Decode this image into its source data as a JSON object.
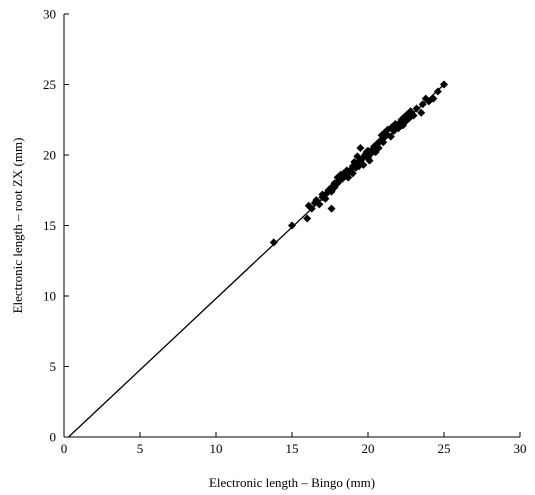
{
  "chart_data": {
    "type": "scatter",
    "xlabel": "Electronic length – Bingo  (mm)",
    "ylabel": "Electronic length – root ZX (mm)",
    "xlim": [
      0,
      30
    ],
    "ylim": [
      0,
      30
    ],
    "xticks": [
      "0",
      "5",
      "10",
      "15",
      "20",
      "25",
      "30"
    ],
    "yticks": [
      "0",
      "5",
      "10",
      "15",
      "20",
      "25",
      "30"
    ],
    "grid": false,
    "marker": "diamond",
    "marker_color": "#000000",
    "fit_line": {
      "x": [
        0.3,
        25.0
      ],
      "y": [
        0.0,
        25.0
      ]
    },
    "series": [
      {
        "x": [
          13.8,
          15.0,
          16.0,
          16.1,
          16.3,
          16.5,
          16.6,
          16.8,
          17.0,
          17.0,
          17.2,
          17.3,
          17.4,
          17.5,
          17.6,
          17.7,
          17.8,
          17.8,
          17.6,
          18.0,
          18.0,
          18.1,
          18.2,
          18.3,
          18.4,
          18.5,
          18.6,
          18.7,
          18.8,
          18.9,
          19.0,
          19.0,
          19.1,
          19.2,
          19.3,
          19.3,
          19.4,
          19.5,
          19.5,
          19.6,
          19.7,
          19.8,
          19.9,
          20.0,
          20.0,
          20.1,
          20.2,
          20.3,
          20.4,
          20.5,
          20.6,
          20.7,
          20.8,
          20.9,
          21.0,
          21.0,
          21.1,
          21.2,
          21.3,
          21.5,
          21.6,
          21.7,
          21.8,
          22.0,
          22.1,
          22.2,
          22.3,
          22.4,
          22.5,
          22.6,
          22.7,
          22.8,
          23.0,
          23.2,
          23.5,
          23.6,
          23.8,
          24.0,
          24.3,
          24.6,
          25.0
        ],
        "y": [
          13.8,
          15.0,
          15.5,
          16.4,
          16.2,
          16.6,
          16.8,
          16.5,
          17.0,
          17.2,
          16.9,
          17.3,
          17.5,
          17.6,
          17.4,
          17.8,
          17.7,
          18.0,
          16.2,
          18.0,
          18.4,
          18.2,
          18.6,
          18.3,
          18.7,
          18.5,
          18.9,
          18.4,
          18.8,
          19.0,
          19.2,
          18.7,
          19.5,
          19.1,
          19.4,
          19.9,
          19.2,
          19.6,
          20.5,
          19.7,
          19.3,
          20.0,
          20.2,
          19.8,
          20.3,
          19.6,
          20.1,
          20.4,
          20.6,
          20.2,
          20.8,
          20.5,
          21.0,
          21.4,
          20.9,
          21.2,
          21.6,
          21.5,
          21.8,
          21.3,
          22.0,
          21.7,
          22.2,
          21.9,
          22.3,
          22.5,
          22.1,
          22.7,
          22.4,
          22.9,
          22.6,
          23.1,
          22.8,
          23.3,
          23.0,
          23.6,
          24.0,
          23.8,
          24.0,
          24.5,
          25.0
        ]
      }
    ]
  }
}
